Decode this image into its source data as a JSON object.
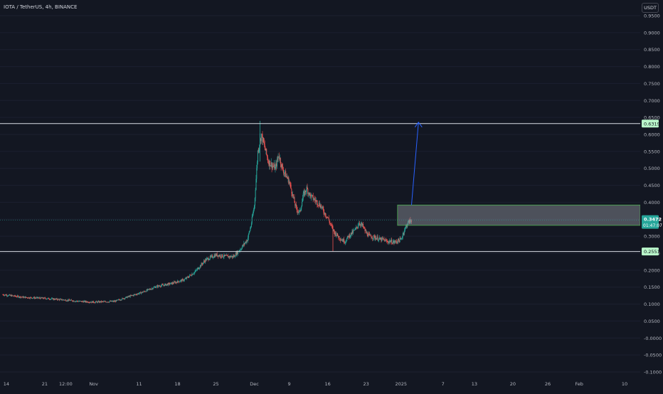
{
  "header": {
    "symbol_title": "IOTA / TetherUS, 4h, BINANCE",
    "currency": "USDT"
  },
  "colors": {
    "background": "#131722",
    "up_candle": "#26a69a",
    "down_candle": "#ef5350",
    "level_line": "#d9dde6",
    "zone_fill": "#9598a1",
    "zone_border": "#4caf50",
    "arrow": "#2962ff",
    "price_tag": "#26a69a",
    "level_tag": "#b9f6ca"
  },
  "price_axis": {
    "ticks": [
      "0.9500",
      "0.9000",
      "0.8500",
      "0.8000",
      "0.7500",
      "0.7000",
      "0.6500",
      "0.6000",
      "0.5500",
      "0.5000",
      "0.4500",
      "0.4000",
      "0.3500",
      "0.3000",
      "0.2500",
      "0.2000",
      "0.1500",
      "0.1000",
      "0.0500",
      "-0.0000",
      "-0.0500",
      "-0.1000"
    ],
    "tick_values": [
      0.95,
      0.9,
      0.85,
      0.8,
      0.75,
      0.7,
      0.65,
      0.6,
      0.55,
      0.5,
      0.45,
      0.4,
      0.35,
      0.3,
      0.25,
      0.2,
      0.15,
      0.1,
      0.05,
      0,
      -0.05,
      -0.1
    ]
  },
  "time_axis": {
    "labels": [
      "14",
      "21",
      "12:00",
      "Nov",
      "11",
      "18",
      "25",
      "Dec",
      "9",
      "16",
      "23",
      "2025",
      "7",
      "13",
      "20",
      "26",
      "Feb",
      "10"
    ],
    "label_bars": [
      1,
      12,
      18,
      26,
      39,
      50,
      61,
      72,
      82,
      93,
      104,
      114,
      126,
      135,
      146,
      156,
      165,
      178
    ]
  },
  "levels": {
    "resistance": {
      "price": 0.6319,
      "label": "0.6319"
    },
    "support": {
      "price": 0.2551,
      "label": "0.2551"
    }
  },
  "zone": {
    "top": 0.392,
    "bottom": 0.332,
    "from_bar": 113
  },
  "current_price": {
    "label": "0.3472",
    "countdown": "01:47:07",
    "value": 0.3472
  },
  "arrow": {
    "from_bar": 117,
    "from_price": 0.392,
    "to_bar": 119,
    "to_price": 0.636
  },
  "chart_data": {
    "type": "candlestick",
    "symbol": "IOTA / TetherUS",
    "interval": "4h",
    "exchange": "BINANCE",
    "bar_unit": "4h",
    "ylim": [
      -0.1,
      0.95
    ],
    "x_ticks": [
      "14",
      "21",
      "12:00",
      "Nov",
      "11",
      "18",
      "25",
      "Dec",
      "9",
      "16",
      "23",
      "2025",
      "7",
      "13",
      "20",
      "26",
      "Feb",
      "10"
    ],
    "close_path": [
      [
        0,
        0.128
      ],
      [
        6,
        0.12
      ],
      [
        12,
        0.117
      ],
      [
        18,
        0.112
      ],
      [
        22,
        0.108
      ],
      [
        26,
        0.106
      ],
      [
        32,
        0.108
      ],
      [
        36,
        0.122
      ],
      [
        40,
        0.135
      ],
      [
        44,
        0.152
      ],
      [
        48,
        0.16
      ],
      [
        52,
        0.172
      ],
      [
        55,
        0.195
      ],
      [
        58,
        0.23
      ],
      [
        61,
        0.245
      ],
      [
        64,
        0.24
      ],
      [
        66,
        0.24
      ],
      [
        68,
        0.262
      ],
      [
        70,
        0.29
      ],
      [
        71,
        0.33
      ],
      [
        72,
        0.39
      ],
      [
        73,
        0.55
      ],
      [
        74,
        0.6
      ],
      [
        75,
        0.56
      ],
      [
        76,
        0.52
      ],
      [
        77,
        0.51
      ],
      [
        78,
        0.5
      ],
      [
        79,
        0.54
      ],
      [
        80,
        0.5
      ],
      [
        81,
        0.48
      ],
      [
        82,
        0.46
      ],
      [
        83,
        0.42
      ],
      [
        84,
        0.38
      ],
      [
        85,
        0.37
      ],
      [
        86,
        0.42
      ],
      [
        87,
        0.44
      ],
      [
        88,
        0.42
      ],
      [
        89,
        0.41
      ],
      [
        90,
        0.4
      ],
      [
        91,
        0.39
      ],
      [
        92,
        0.37
      ],
      [
        93,
        0.355
      ],
      [
        94,
        0.33
      ],
      [
        95,
        0.31
      ],
      [
        96,
        0.3
      ],
      [
        97,
        0.29
      ],
      [
        98,
        0.285
      ],
      [
        99,
        0.3
      ],
      [
        100,
        0.31
      ],
      [
        101,
        0.32
      ],
      [
        102,
        0.34
      ],
      [
        103,
        0.33
      ],
      [
        104,
        0.31
      ],
      [
        105,
        0.3
      ],
      [
        106,
        0.298
      ],
      [
        107,
        0.295
      ],
      [
        108,
        0.29
      ],
      [
        109,
        0.29
      ],
      [
        110,
        0.284
      ],
      [
        111,
        0.285
      ],
      [
        112,
        0.282
      ],
      [
        113,
        0.286
      ],
      [
        114,
        0.29
      ],
      [
        115,
        0.32
      ],
      [
        116,
        0.34
      ],
      [
        117,
        0.3472
      ]
    ]
  }
}
